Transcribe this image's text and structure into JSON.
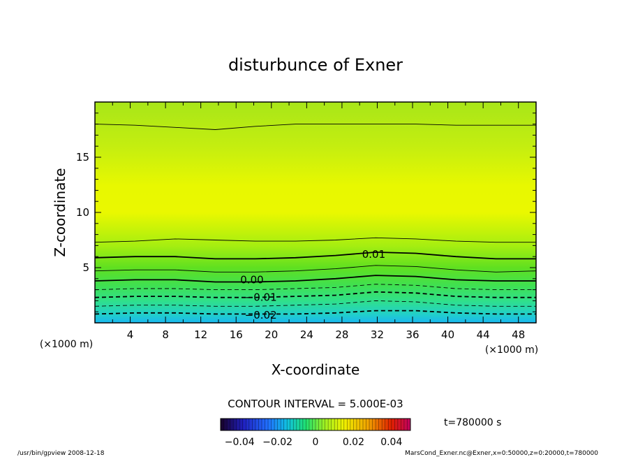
{
  "chart_data": {
    "type": "heatmap",
    "title": "disturbunce of Exner",
    "xlabel": "X-coordinate",
    "ylabel": "Z-coordinate",
    "x_unit": "(×1000 m)",
    "y_unit": "(×1000 m)",
    "xlim": [
      0,
      50
    ],
    "ylim": [
      0,
      20
    ],
    "x_ticks": [
      4,
      8,
      12,
      16,
      20,
      24,
      28,
      32,
      36,
      40,
      44,
      48
    ],
    "y_ticks": [
      5,
      10,
      15
    ],
    "contour_interval_text": "CONTOUR INTERVAL = 5.000E-03",
    "contour_interval": 0.005,
    "contour_labels": [
      {
        "text": "0.01",
        "x": 31.6,
        "z": 6.2
      },
      {
        "text": "0.00",
        "x": 17.8,
        "z": 3.9
      },
      {
        "text": "−0.01",
        "x": 18.8,
        "z": 2.3
      },
      {
        "text": "−0.02",
        "x": 18.8,
        "z": 0.7
      }
    ],
    "contour_levels": [
      {
        "value": 0.015,
        "style": "solid",
        "z": [
          7.3,
          7.4,
          7.6,
          7.5,
          7.4,
          7.4,
          7.5,
          7.7,
          7.6,
          7.4,
          7.3,
          7.3
        ]
      },
      {
        "value": 0.01,
        "style": "solid-thick",
        "z": [
          5.9,
          6.0,
          6.0,
          5.8,
          5.8,
          5.9,
          6.1,
          6.4,
          6.3,
          6.0,
          5.8,
          5.8
        ]
      },
      {
        "value": 0.005,
        "style": "solid",
        "z": [
          4.7,
          4.8,
          4.8,
          4.6,
          4.6,
          4.7,
          4.9,
          5.2,
          5.1,
          4.8,
          4.6,
          4.7
        ]
      },
      {
        "value": 0.0,
        "style": "solid-thick",
        "z": [
          3.8,
          3.9,
          3.9,
          3.7,
          3.7,
          3.8,
          4.0,
          4.3,
          4.2,
          3.9,
          3.8,
          3.8
        ]
      },
      {
        "value": -0.005,
        "style": "dashed",
        "z": [
          3.0,
          3.1,
          3.1,
          3.0,
          3.0,
          3.1,
          3.2,
          3.5,
          3.4,
          3.1,
          3.0,
          3.0
        ]
      },
      {
        "value": -0.01,
        "style": "dashed-thick",
        "z": [
          2.3,
          2.4,
          2.4,
          2.3,
          2.3,
          2.4,
          2.5,
          2.8,
          2.7,
          2.4,
          2.3,
          2.3
        ]
      },
      {
        "value": -0.015,
        "style": "dashed",
        "z": [
          1.5,
          1.6,
          1.6,
          1.5,
          1.5,
          1.6,
          1.7,
          2.0,
          1.9,
          1.6,
          1.5,
          1.5
        ]
      },
      {
        "value": -0.02,
        "style": "dashed-thick",
        "z": [
          0.8,
          0.9,
          0.9,
          0.8,
          0.8,
          0.8,
          0.9,
          1.1,
          1.1,
          0.9,
          0.8,
          0.8
        ]
      },
      {
        "value": 0.02,
        "style": "solid",
        "z": [
          18.0,
          17.9,
          17.7,
          17.5,
          17.8,
          18.0,
          18.0,
          18.0,
          18.0,
          17.9,
          17.9,
          17.9
        ]
      }
    ],
    "colorbar": {
      "ticks": [
        -0.04,
        -0.02,
        0,
        0.02,
        0.04
      ],
      "tick_labels": [
        "−0.04",
        "−0.02",
        "0",
        "0.02",
        "0.04"
      ],
      "range": [
        -0.05,
        0.05
      ]
    },
    "time_label": "t=780000 s",
    "footer_left": "/usr/bin/gpview   2008-12-18",
    "footer_right": "MarsCond_Exner.nc@Exner,x=0:50000,z=0:20000,t=780000"
  }
}
